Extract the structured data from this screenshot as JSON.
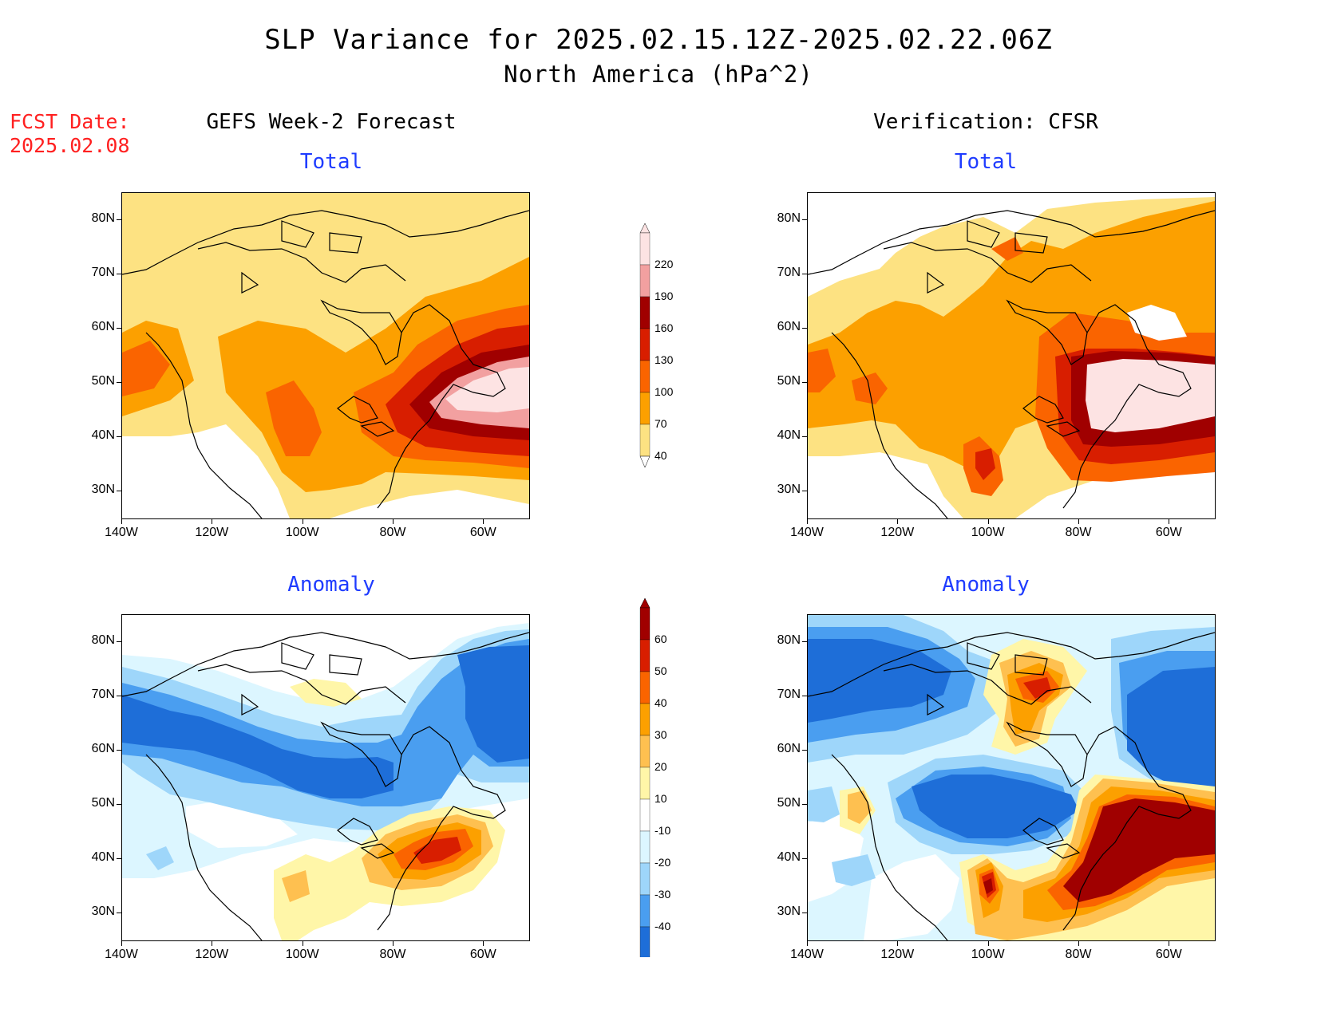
{
  "title": {
    "line1": "SLP Variance for 2025.02.15.12Z-2025.02.22.06Z",
    "line2": "North America (hPa^2)"
  },
  "fcst": {
    "label": "FCST Date:",
    "date": "2025.02.08"
  },
  "columns": {
    "left": "GEFS Week-2 Forecast",
    "right": "Verification: CFSR"
  },
  "rows": {
    "top": "Total",
    "bottom": "Anomaly"
  },
  "axes": {
    "lat_ticks": [
      "80N",
      "70N",
      "60N",
      "50N",
      "40N",
      "30N"
    ],
    "lon_ticks": [
      "140W",
      "120W",
      "100W",
      "80W",
      "60W"
    ],
    "lat_range": [
      25,
      85
    ],
    "lon_range": [
      -140,
      -50
    ]
  },
  "colorbars": {
    "total": {
      "labels": [
        "220",
        "190",
        "160",
        "130",
        "100",
        "70",
        "40"
      ],
      "colors": [
        "#fde3e3",
        "#f2a0a0",
        "#a00000",
        "#d81e00",
        "#fa6400",
        "#fca000",
        "#fde282"
      ]
    },
    "anomaly": {
      "labels": [
        "60",
        "50",
        "40",
        "30",
        "20",
        "10",
        "-10",
        "-20",
        "-30",
        "-40"
      ],
      "colors": [
        "#a00000",
        "#d81e00",
        "#fa6400",
        "#fca000",
        "#fec050",
        "#fff6a8",
        "#ffffff",
        "#dcf6ff",
        "#9ed6fa",
        "#4a9ef0",
        "#1e6ed8"
      ]
    }
  },
  "palette": {
    "total": {
      "t40": "#fde282",
      "t70": "#fca000",
      "t100": "#fa6400",
      "t130": "#d81e00",
      "t160": "#a00000",
      "t190": "#f2a0a0",
      "t220": "#fde3e3"
    },
    "anomaly": {
      "p10": "#fff6a8",
      "p20": "#fec050",
      "p30": "#fca000",
      "p40": "#fa6400",
      "p50": "#d81e00",
      "p60": "#a00000",
      "n10": "#dcf6ff",
      "n20": "#9ed6fa",
      "n30": "#4a9ef0",
      "n40": "#1e6ed8"
    }
  }
}
